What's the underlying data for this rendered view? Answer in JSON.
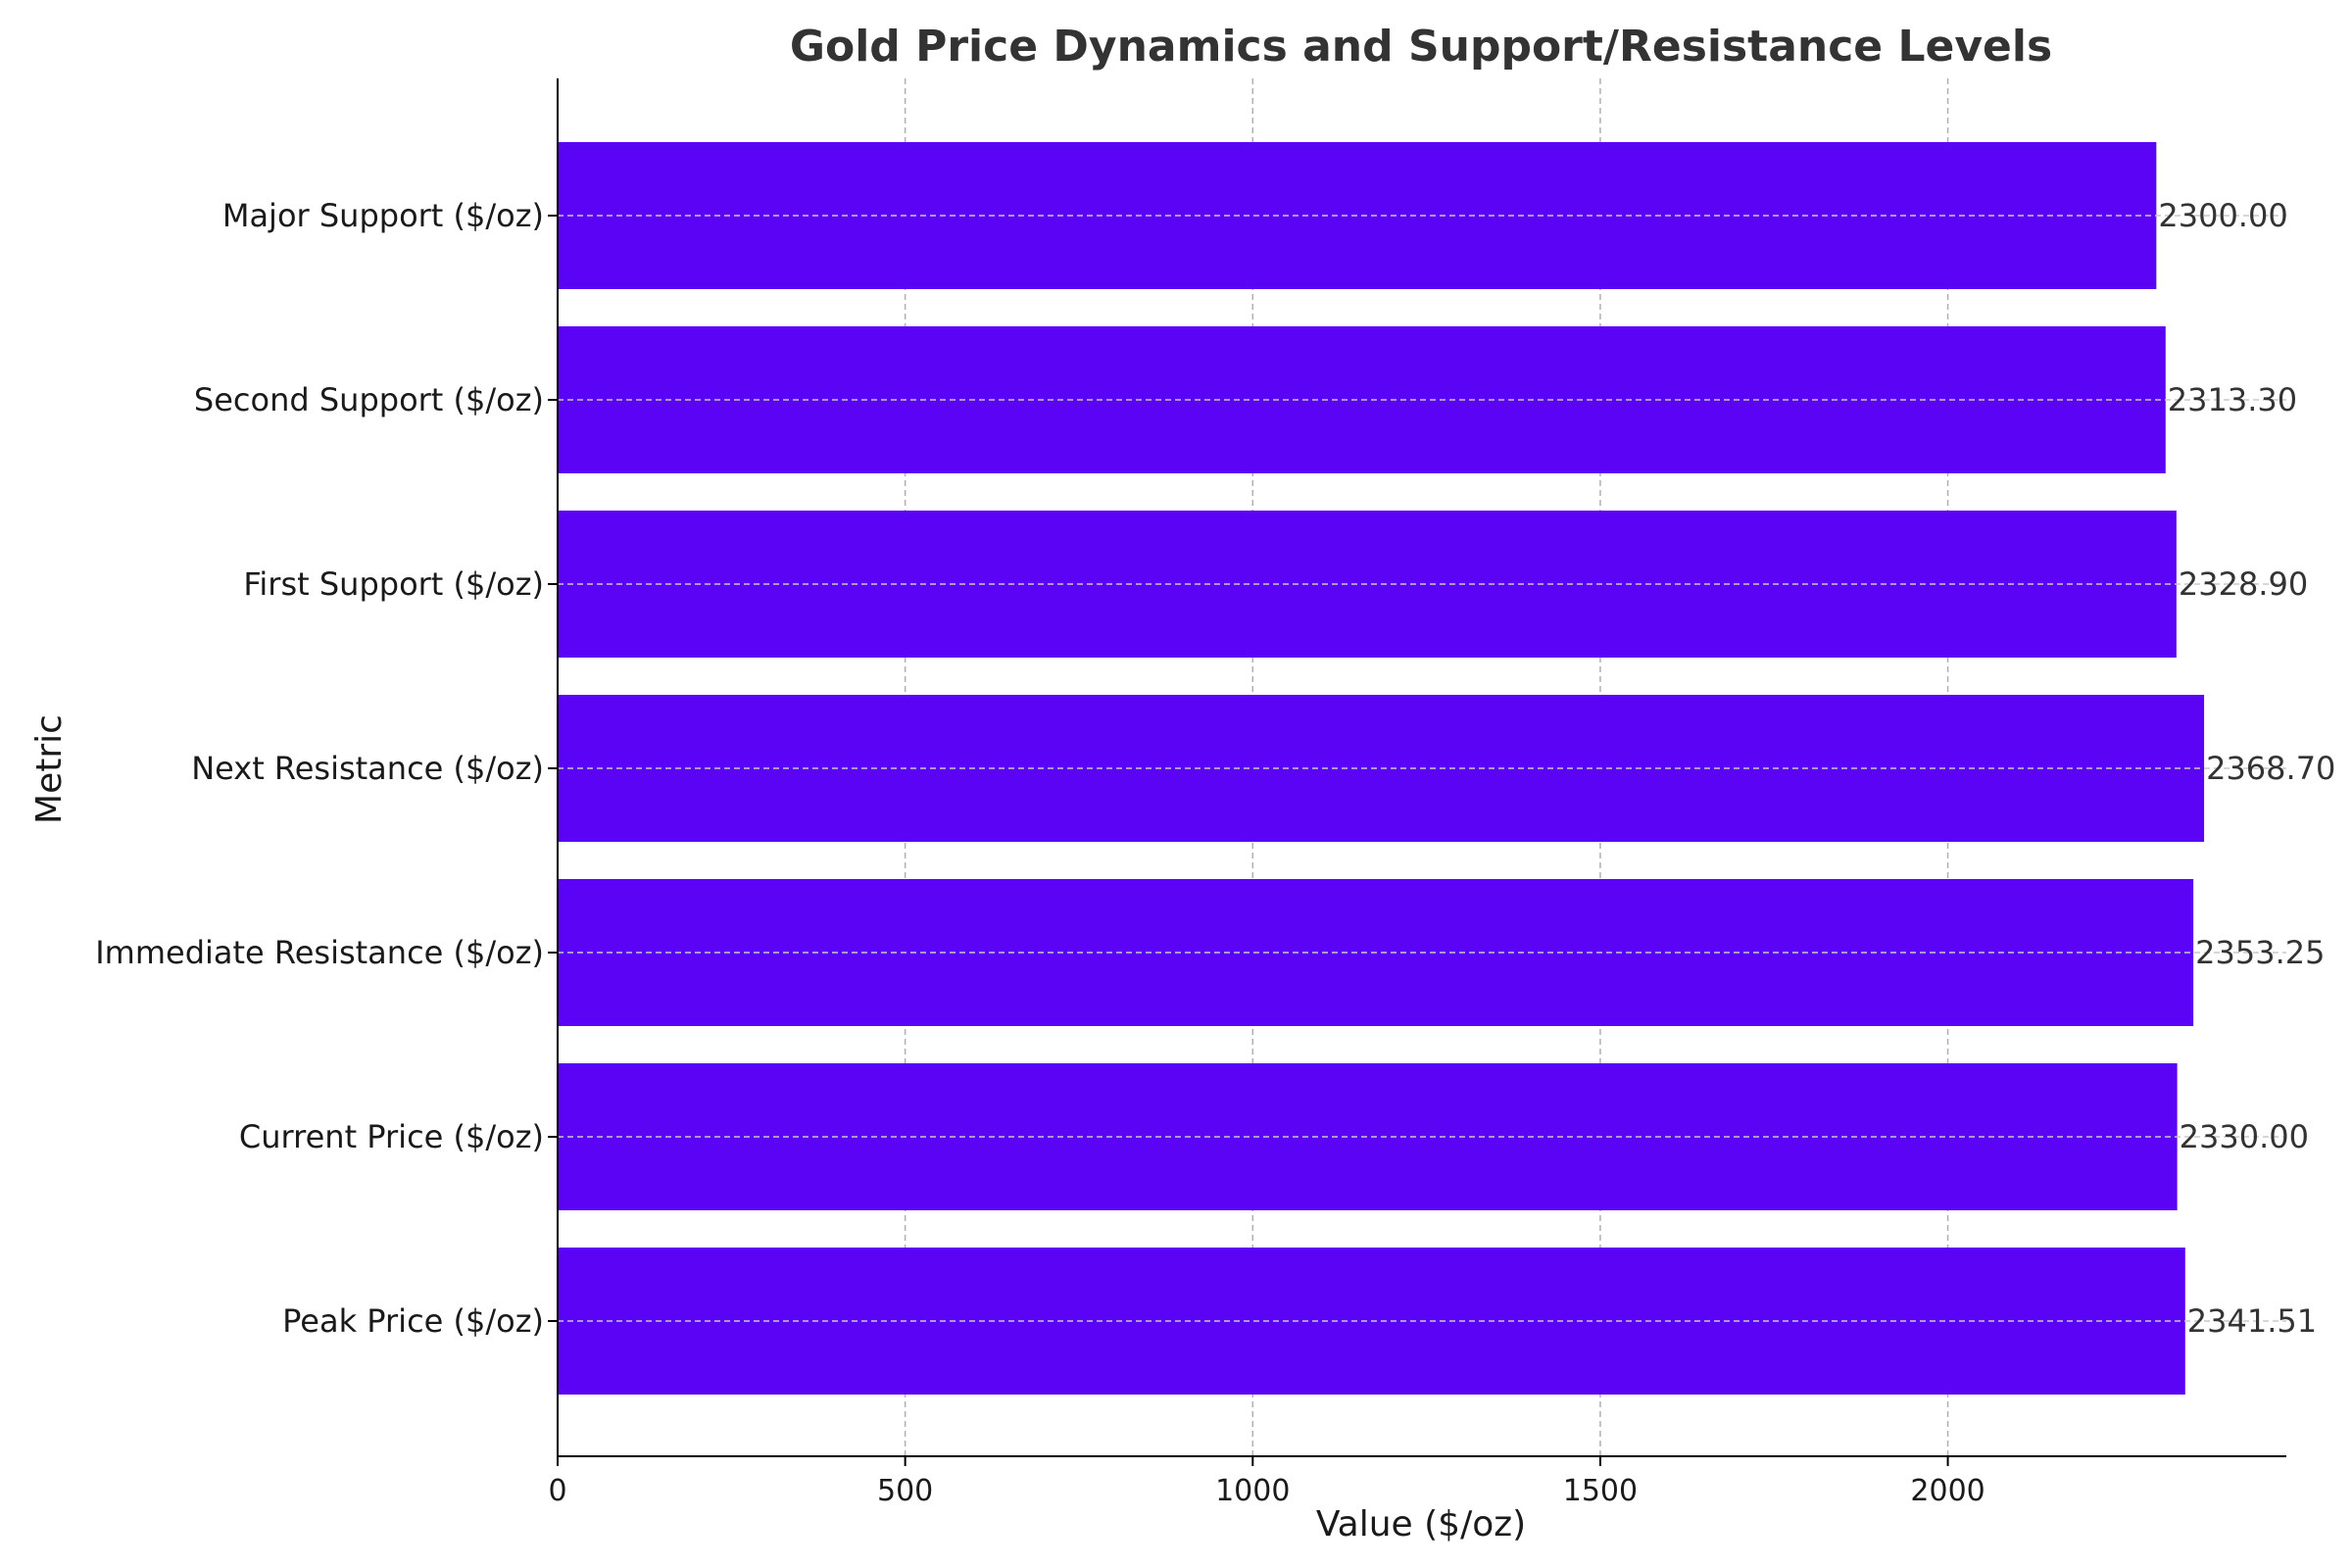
{
  "chart_data": {
    "type": "bar",
    "orientation": "horizontal",
    "title": "Gold Price Dynamics and Support/Resistance Levels",
    "xlabel": "Value ($/oz)",
    "ylabel": "Metric",
    "categories": [
      "Peak Price ($/oz)",
      "Current Price ($/oz)",
      "Immediate Resistance ($/oz)",
      "Next Resistance ($/oz)",
      "First Support ($/oz)",
      "Second Support ($/oz)",
      "Major Support ($/oz)"
    ],
    "values": [
      2341.51,
      2330.0,
      2353.25,
      2368.7,
      2328.9,
      2313.3,
      2300.0
    ],
    "value_labels": [
      "2341.51",
      "2330.00",
      "2353.25",
      "2368.70",
      "2328.90",
      "2313.30",
      "2300.00"
    ],
    "xticks": [
      0,
      500,
      1000,
      1500,
      2000
    ],
    "xtick_labels": [
      "0",
      "500",
      "1000",
      "1500",
      "2000"
    ],
    "xlim": [
      0,
      2487
    ],
    "grid": true,
    "bar_color": "#5b04f5"
  }
}
